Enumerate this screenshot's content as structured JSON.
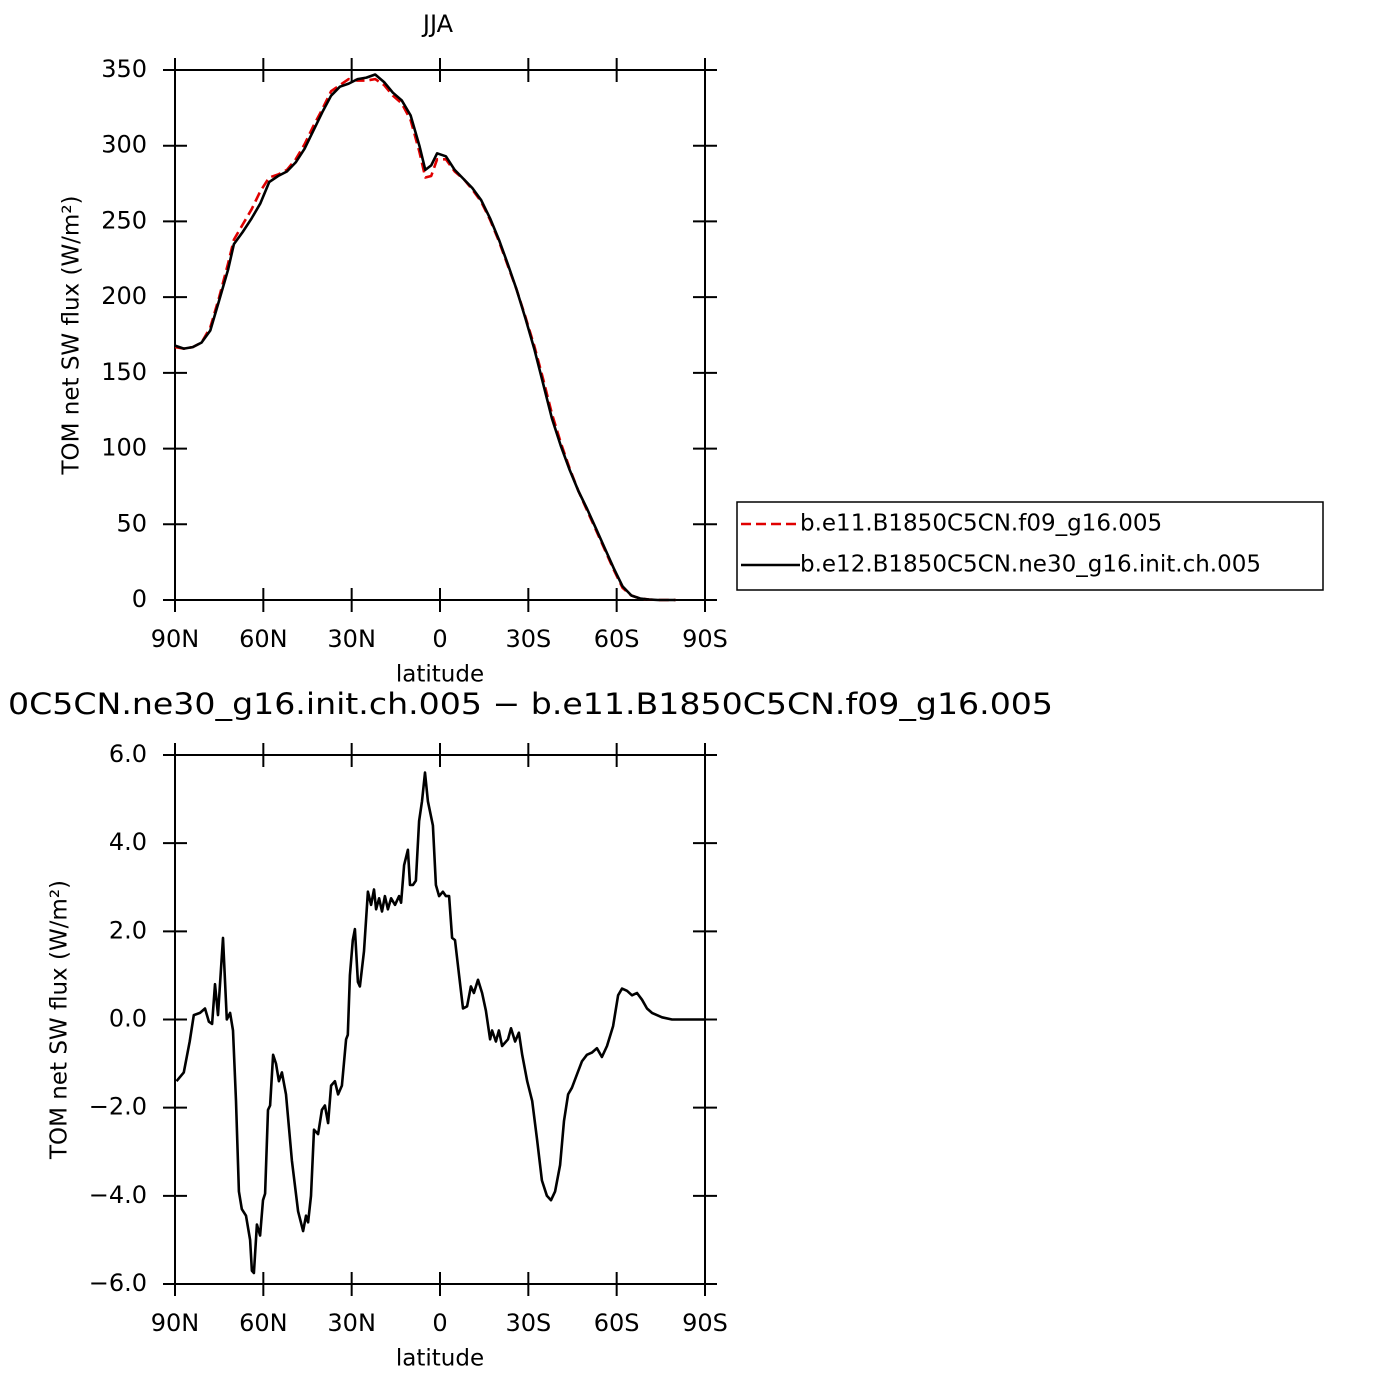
{
  "chart_data": [
    {
      "type": "line",
      "title": "JJA",
      "xlabel": "latitude",
      "ylabel": "TOM net SW flux (W/m²)",
      "x": [
        90,
        87,
        84,
        81,
        78,
        75,
        72,
        70,
        67,
        64,
        61,
        58,
        55,
        52,
        49,
        46,
        43,
        40,
        37,
        34,
        31,
        28,
        25,
        22,
        19,
        16,
        13,
        10,
        7,
        5,
        3,
        1,
        -2,
        -5,
        -8,
        -11,
        -14,
        -17,
        -20,
        -23,
        -26,
        -29,
        -32,
        -35,
        -38,
        -41,
        -44,
        -47,
        -50,
        -53,
        -56,
        -59,
        -62,
        -65,
        -68,
        -71,
        -74,
        -77,
        -80
      ],
      "series": [
        {
          "name": "b.e11.B1850C5CN.f09_g16.005",
          "color": "#e00000",
          "style": "dashed",
          "values": [
            167,
            166,
            167,
            170,
            180,
            200,
            222,
            238,
            248,
            258,
            270,
            279,
            281,
            284,
            291,
            301,
            313,
            324,
            336,
            340,
            344,
            343,
            343,
            344,
            340,
            333,
            328,
            317,
            296,
            279,
            280,
            291,
            291,
            283,
            278,
            271,
            263,
            251,
            237,
            221,
            205,
            187,
            168,
            146,
            123,
            104,
            87,
            72,
            59,
            46,
            33,
            20,
            8,
            3,
            1,
            0.3,
            0,
            0,
            0
          ]
        },
        {
          "name": "b.e12.B1850C5CN.ne30_g16.init.ch.005",
          "color": "#000000",
          "style": "solid",
          "values": [
            168,
            166,
            167,
            170,
            178,
            198,
            218,
            235,
            243,
            252,
            262,
            276,
            280,
            283,
            289,
            298,
            310,
            322,
            333,
            339,
            341,
            344,
            345,
            347,
            342,
            335,
            330,
            320,
            300,
            284,
            287,
            295,
            293,
            284,
            278,
            272,
            264,
            252,
            238,
            222,
            205,
            186,
            166,
            143,
            120,
            102,
            86,
            72,
            60,
            47,
            34,
            21,
            9,
            3,
            1,
            0.3,
            0,
            0,
            0
          ]
        }
      ],
      "xlim": [
        90,
        -90
      ],
      "xticks": [
        {
          "value": 90,
          "label": "90N"
        },
        {
          "value": 60,
          "label": "60N"
        },
        {
          "value": 30,
          "label": "30N"
        },
        0,
        {
          "value": -30,
          "label": "30S"
        },
        {
          "value": -60,
          "label": "60S"
        },
        {
          "value": -90,
          "label": "90S"
        }
      ],
      "ylim": [
        0,
        350
      ],
      "yticks": [
        0,
        50,
        100,
        150,
        200,
        250,
        300,
        350
      ],
      "legend": "right"
    },
    {
      "type": "line",
      "title": "0C5CN.ne30_g16.init.ch.005 − b.e11.B1850C5CN.f09_g16.005",
      "xlabel": "latitude",
      "ylabel": "TOM net SW flux (W/m²)",
      "x": [
        89.5,
        87,
        85,
        83.6,
        81.5,
        79.8,
        78.5,
        77.4,
        76.4,
        75.4,
        73.7,
        72.4,
        71.3,
        70.3,
        69.3,
        68.3,
        67.3,
        65.9,
        64.5,
        63.9,
        63.2,
        62.2,
        61.1,
        60.1,
        59.4,
        58.4,
        57.7,
        56.7,
        55.7,
        54.7,
        53.7,
        52.3,
        50.3,
        48.2,
        46.5,
        45.5,
        44.8,
        43.8,
        42.8,
        41.4,
        40.1,
        39.1,
        38.0,
        37.0,
        35.7,
        34.6,
        33.3,
        31.9,
        31.3,
        30.6,
        29.6,
        28.9,
        27.9,
        27.2,
        25.8,
        24.5,
        23.4,
        22.4,
        21.7,
        20.7,
        19.7,
        18.7,
        17.7,
        16.6,
        15.3,
        13.9,
        13.2,
        12.2,
        10.9,
        10.2,
        9.2,
        8.2,
        7.1,
        6.1,
        5.1,
        4.1,
        2.4,
        1.4,
        0.3,
        -1.0,
        -2.0,
        -3.1,
        -4.1,
        -5.1,
        -6.5,
        -7.8,
        -9.2,
        -10.5,
        -11.5,
        -12.9,
        -14.3,
        -15.6,
        -17.0,
        -17.7,
        -19.0,
        -20.0,
        -21.1,
        -23.1,
        -24.1,
        -25.5,
        -26.8,
        -27.9,
        -29.6,
        -31.3,
        -33.0,
        -34.6,
        -36.3,
        -37.7,
        -39.1,
        -40.8,
        -42.1,
        -43.5,
        -44.8,
        -46.5,
        -48.2,
        -49.9,
        -51.6,
        -53.3,
        -55.0,
        -56.7,
        -58.8,
        -60.5,
        -61.8,
        -63.5,
        -65.2,
        -66.9,
        -68.6,
        -70.3,
        -72.0,
        -75.4,
        -78.8,
        -90
      ],
      "values": [
        -1.4,
        -1.2,
        -0.5,
        0.1,
        0.15,
        0.25,
        -0.05,
        -0.1,
        0.8,
        0.1,
        1.85,
        0,
        0.15,
        -0.25,
        -1.85,
        -3.9,
        -4.3,
        -4.45,
        -5.0,
        -5.7,
        -5.75,
        -4.65,
        -4.9,
        -4.1,
        -3.95,
        -2.05,
        -1.95,
        -0.8,
        -1.0,
        -1.4,
        -1.2,
        -1.7,
        -3.2,
        -4.35,
        -4.8,
        -4.45,
        -4.6,
        -4.0,
        -2.5,
        -2.6,
        -2.05,
        -1.95,
        -2.35,
        -1.5,
        -1.4,
        -1.7,
        -1.5,
        -0.45,
        -0.35,
        1.0,
        1.8,
        2.05,
        0.85,
        0.75,
        1.55,
        2.9,
        2.6,
        2.95,
        2.5,
        2.75,
        2.45,
        2.8,
        2.5,
        2.75,
        2.6,
        2.8,
        2.65,
        3.5,
        3.85,
        3.05,
        3.05,
        3.15,
        4.5,
        4.95,
        5.6,
        4.95,
        4.4,
        3.05,
        2.8,
        2.9,
        2.8,
        2.8,
        1.85,
        1.8,
        1.0,
        0.25,
        0.3,
        0.75,
        0.6,
        0.9,
        0.6,
        0.2,
        -0.45,
        -0.25,
        -0.5,
        -0.25,
        -0.6,
        -0.45,
        -0.2,
        -0.5,
        -0.3,
        -0.8,
        -1.4,
        -1.85,
        -2.75,
        -3.65,
        -4.0,
        -4.1,
        -3.9,
        -3.3,
        -2.3,
        -1.7,
        -1.55,
        -1.25,
        -0.95,
        -0.8,
        -0.75,
        -0.65,
        -0.85,
        -0.6,
        -0.15,
        0.55,
        0.7,
        0.65,
        0.55,
        0.6,
        0.45,
        0.25,
        0.15,
        0.05,
        0.0,
        0
      ],
      "color": "#000000",
      "xlim": [
        90,
        -90
      ],
      "xticks": [
        {
          "value": 90,
          "label": "90N"
        },
        {
          "value": 60,
          "label": "60N"
        },
        {
          "value": 30,
          "label": "30N"
        },
        0,
        {
          "value": -30,
          "label": "30S"
        },
        {
          "value": -60,
          "label": "60S"
        },
        {
          "value": -90,
          "label": "90S"
        }
      ],
      "ylim": [
        -6,
        6
      ],
      "yticks": [
        {
          "value": -6,
          "label": "−6.0"
        },
        {
          "value": -4,
          "label": "−4.0"
        },
        {
          "value": -2,
          "label": "−2.0"
        },
        {
          "value": 0,
          "label": "0.0"
        },
        {
          "value": 2,
          "label": "2.0"
        },
        {
          "value": 4,
          "label": "4.0"
        },
        {
          "value": 6,
          "label": "6.0"
        }
      ]
    }
  ]
}
